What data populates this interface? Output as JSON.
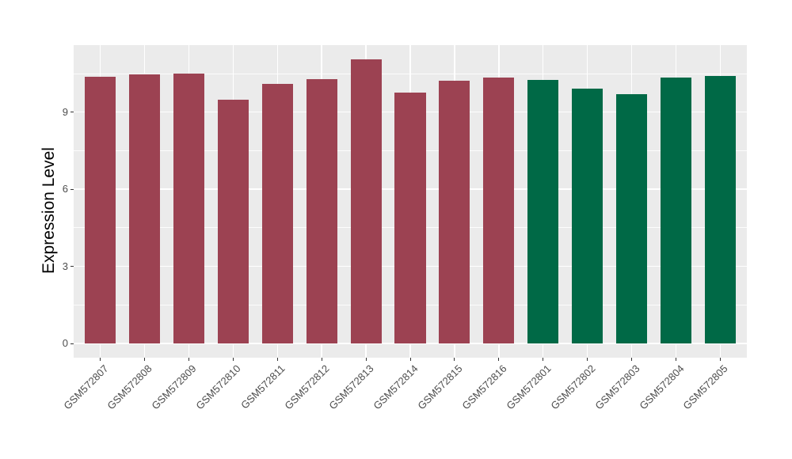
{
  "chart_data": {
    "type": "bar",
    "title": "",
    "xlabel": "",
    "ylabel": "Expression Level",
    "categories": [
      "GSM572807",
      "GSM572808",
      "GSM572809",
      "GSM572810",
      "GSM572811",
      "GSM572812",
      "GSM572813",
      "GSM572814",
      "GSM572815",
      "GSM572816",
      "GSM572801",
      "GSM572802",
      "GSM572803",
      "GSM572804",
      "GSM572805"
    ],
    "values": [
      10.37,
      10.46,
      10.49,
      9.5,
      10.1,
      10.29,
      11.06,
      9.75,
      10.23,
      10.36,
      10.26,
      9.93,
      9.69,
      10.36,
      10.42
    ],
    "bar_colors": [
      "#9C4252",
      "#9C4252",
      "#9C4252",
      "#9C4252",
      "#9C4252",
      "#9C4252",
      "#9C4252",
      "#9C4252",
      "#9C4252",
      "#9C4252",
      "#006946",
      "#006946",
      "#006946",
      "#006946",
      "#006946"
    ],
    "palette": {
      "maroon": "#9C4252",
      "green": "#006946"
    },
    "ylim": [
      0,
      11.61
    ],
    "yticks": [
      "0",
      "3",
      "6",
      "9"
    ],
    "ytick_values": [
      0,
      3,
      6,
      9
    ],
    "minor_ytick_values": [
      1.5,
      4.5,
      7.5,
      10.5
    ],
    "x_label_angle_deg": 45,
    "legend": "none",
    "grid": true,
    "panel_background": "#EBEBEB",
    "grid_color": "#FFFFFF",
    "axis_text_color": "#4D4D4D",
    "axis_title_color": "#000000",
    "figure_background": "#FFFFFF"
  }
}
